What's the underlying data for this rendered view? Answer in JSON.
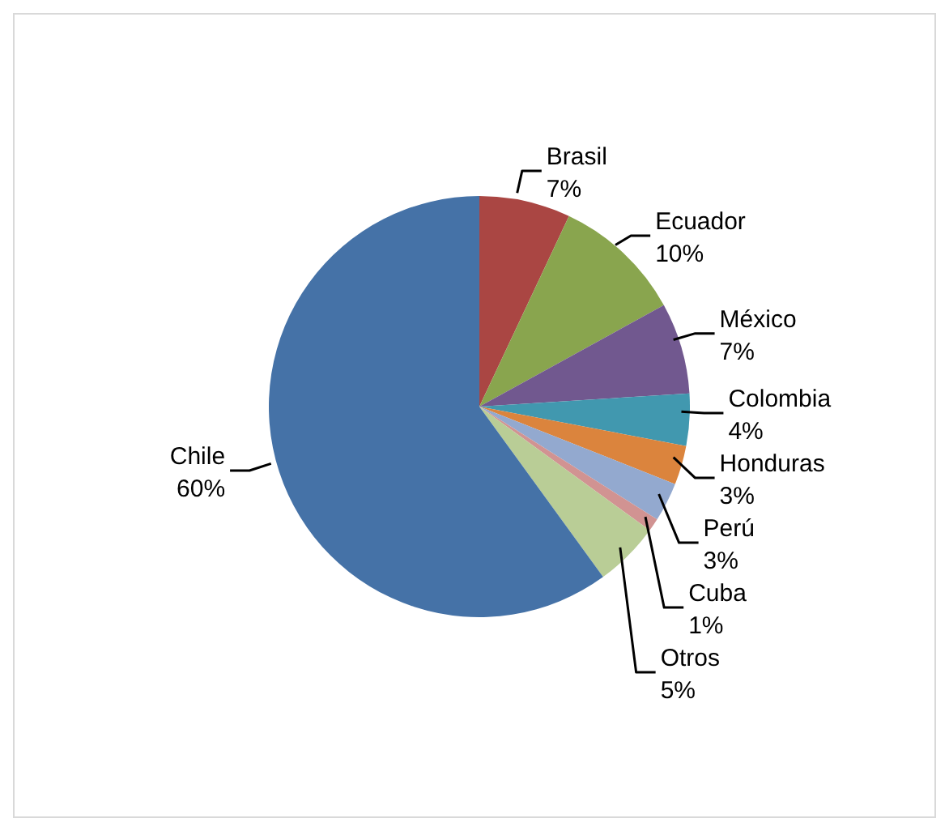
{
  "chart_data": {
    "type": "pie",
    "categories": [
      "Brasil",
      "Ecuador",
      "México",
      "Colombia",
      "Honduras",
      "Perú",
      "Cuba",
      "Otros",
      "Chile"
    ],
    "values": [
      7,
      10,
      7,
      4,
      3,
      3,
      1,
      5,
      60
    ],
    "value_labels": [
      "7%",
      "10%",
      "7%",
      "4%",
      "3%",
      "3%",
      "1%",
      "5%",
      "60%"
    ],
    "colors": [
      "#aa4643",
      "#89a54e",
      "#71588f",
      "#4198af",
      "#db843d",
      "#93a9cf",
      "#d19392",
      "#b9cd96",
      "#4572a7"
    ]
  }
}
